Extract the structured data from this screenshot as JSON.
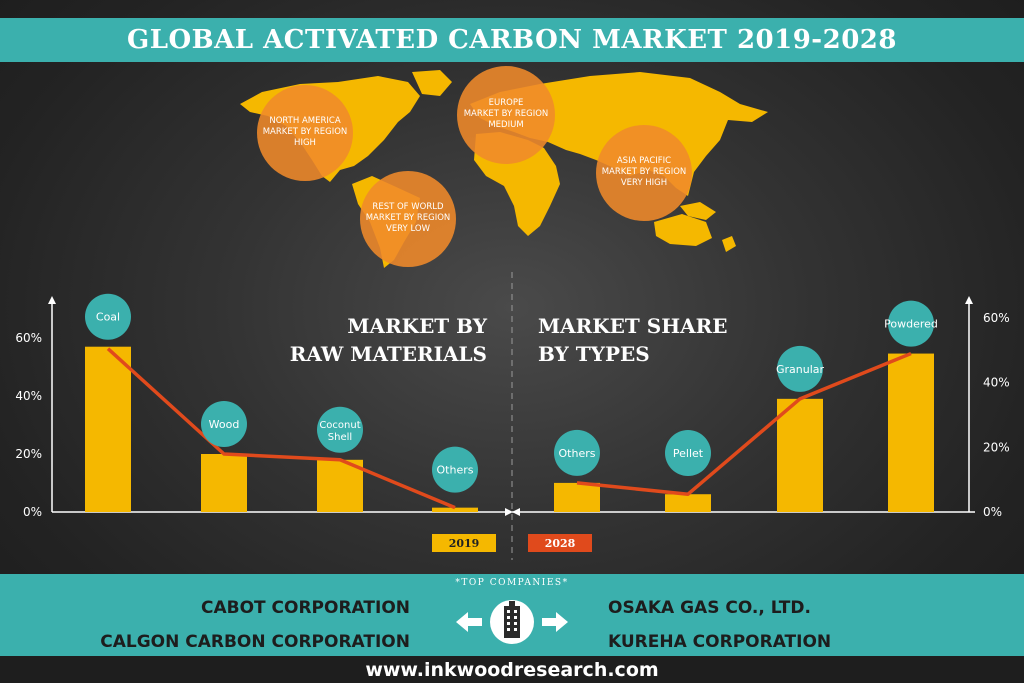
{
  "title": "GLOBAL ACTIVATED CARBON MARKET 2019-2028",
  "map_regions": [
    {
      "lines": [
        "NORTH AMERICA",
        "MARKET BY REGION",
        "HIGH"
      ]
    },
    {
      "lines": [
        "EUROPE",
        "MARKET BY REGION",
        "MEDIUM"
      ]
    },
    {
      "lines": [
        "ASIA PACIFIC",
        "MARKET BY REGION",
        "VERY HIGH"
      ]
    },
    {
      "lines": [
        "REST OF WORLD",
        "MARKET BY REGION",
        "VERY LOW"
      ]
    }
  ],
  "legend": [
    "2019",
    "2028"
  ],
  "colors": {
    "bar": "#f5b800",
    "line": "#e04a1c",
    "bubble": "#3bb0ad",
    "map": "#f5b800",
    "region_circle": "#f08a2a",
    "teal": "#3bb0ad"
  },
  "chart_data": [
    {
      "type": "bar",
      "title": [
        "MARKET BY",
        "RAW MATERIALS"
      ],
      "categories": [
        "Coal",
        "Wood",
        "Coconut Shell",
        "Others"
      ],
      "category_lines": [
        [
          "Coal"
        ],
        [
          "Wood"
        ],
        [
          "Coconut",
          "Shell"
        ],
        [
          "Others"
        ]
      ],
      "series": [
        {
          "name": "2019",
          "kind": "bar",
          "values": [
            57,
            20,
            18,
            1.5
          ]
        },
        {
          "name": "2028",
          "kind": "line",
          "values": [
            57,
            20,
            18,
            1.5
          ]
        }
      ],
      "ylim": [
        0,
        60
      ],
      "yticks": [
        "0%",
        "20%",
        "40%",
        "60%"
      ],
      "axis_side": "left"
    },
    {
      "type": "bar",
      "title": [
        "MARKET SHARE",
        "BY TYPES"
      ],
      "categories": [
        "Others",
        "Pellet",
        "Granular",
        "Powdered"
      ],
      "category_lines": [
        [
          "Others"
        ],
        [
          "Pellet"
        ],
        [
          "Granular"
        ],
        [
          "Powdered"
        ]
      ],
      "series": [
        {
          "name": "2019",
          "kind": "bar",
          "values": [
            9,
            5.5,
            35,
            49
          ]
        },
        {
          "name": "2028",
          "kind": "line",
          "values": [
            9,
            5.5,
            35,
            49
          ]
        }
      ],
      "ylim": [
        0,
        60
      ],
      "yticks": [
        "0%",
        "20%",
        "40%",
        "60%"
      ],
      "axis_side": "right"
    }
  ],
  "footer": {
    "top_companies_label": "*TOP COMPANIES*",
    "companies_left": [
      "CABOT CORPORATION",
      "CALGON CARBON CORPORATION"
    ],
    "companies_right": [
      "OSAKA GAS CO., LTD.",
      "KUREHA CORPORATION"
    ],
    "url": "www.inkwoodresearch.com"
  }
}
